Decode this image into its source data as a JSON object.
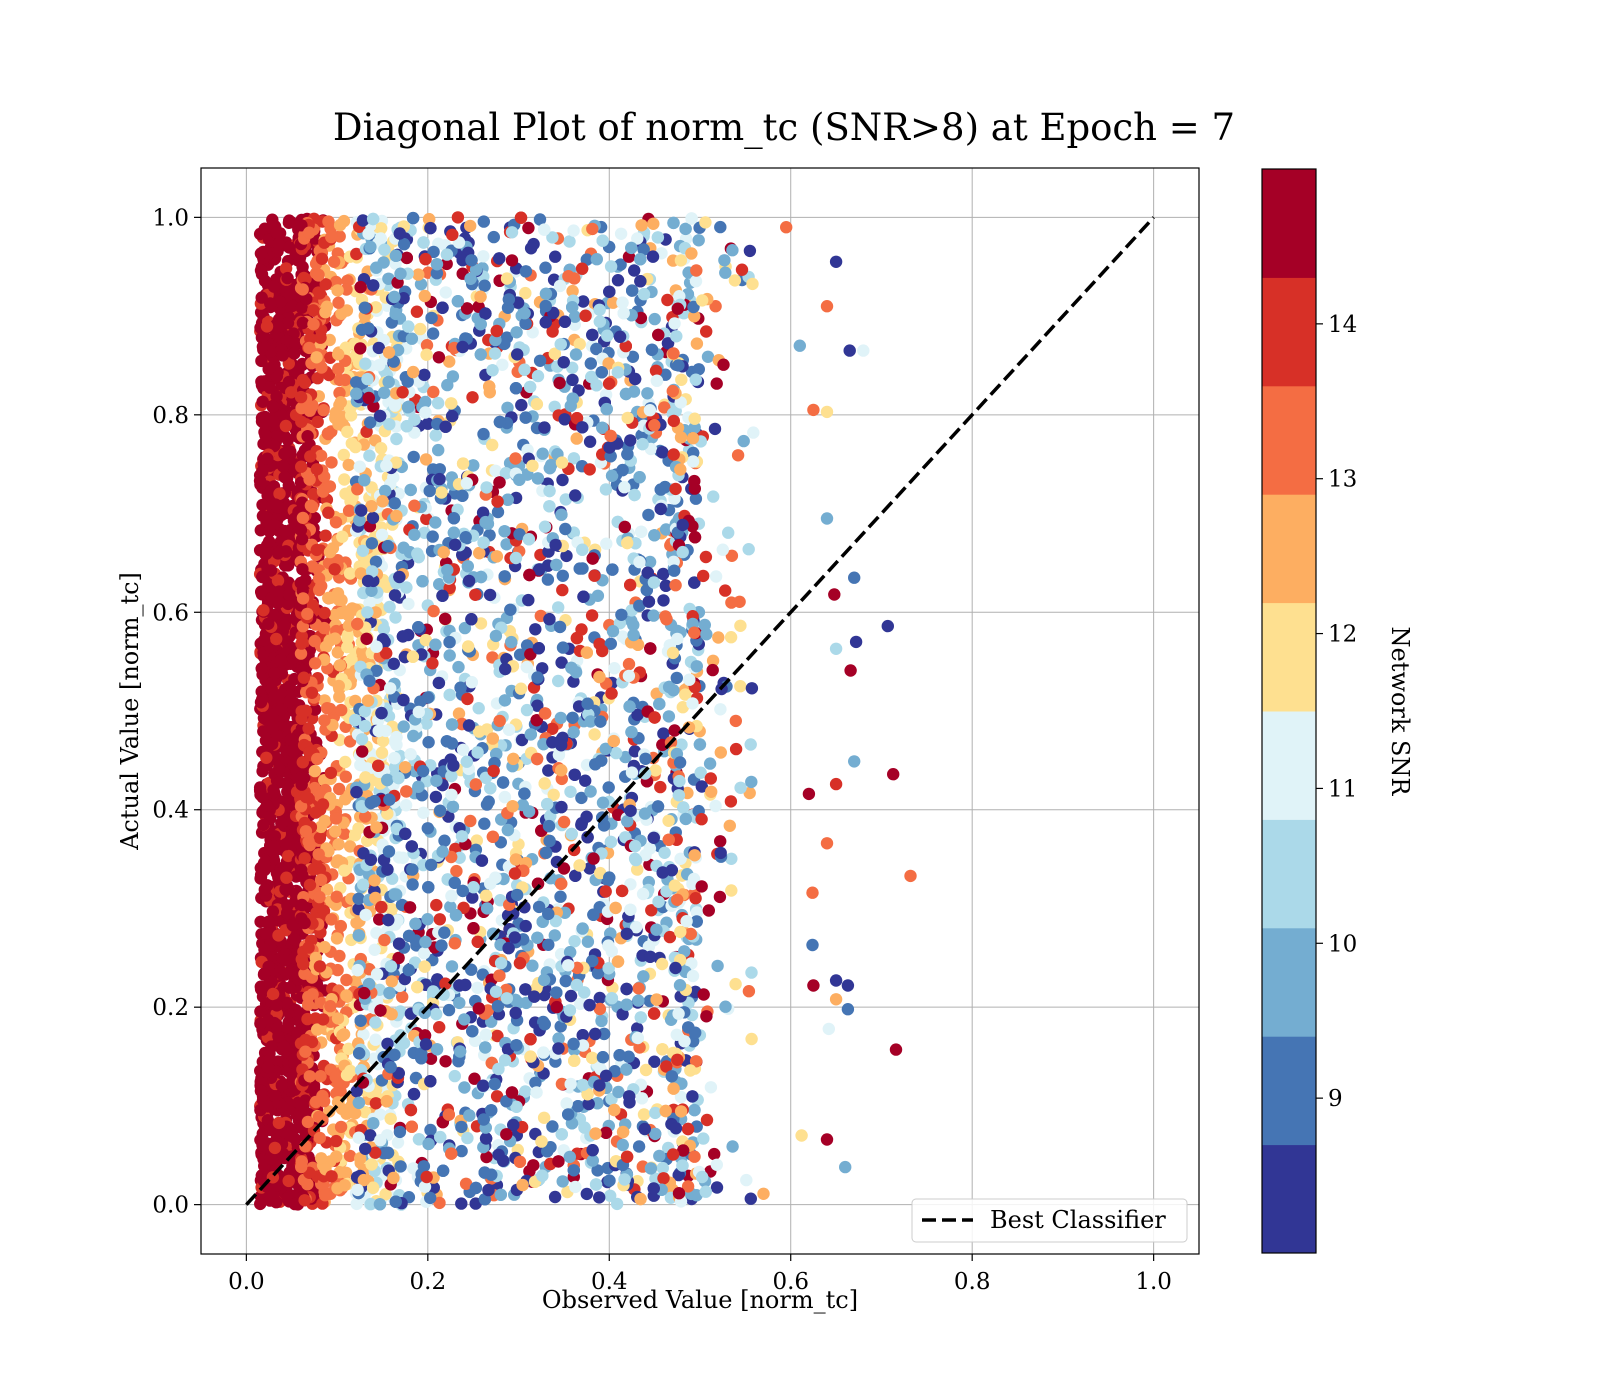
{
  "chart_data": {
    "type": "scatter",
    "title": "Diagonal Plot of norm_tc (SNR>8) at Epoch = 7",
    "xlabel": "Observed Value [norm_tc]",
    "ylabel": "Actual Value [norm_tc]",
    "xlim": [
      -0.05,
      1.05
    ],
    "ylim": [
      -0.05,
      1.05
    ],
    "xticks": [
      "0.0",
      "0.2",
      "0.4",
      "0.6",
      "0.8",
      "1.0"
    ],
    "yticks": [
      "0.0",
      "0.2",
      "0.4",
      "0.6",
      "0.8",
      "1.0"
    ],
    "grid": true,
    "legend": {
      "placement": "lower right",
      "entries": [
        "Best Classifier"
      ]
    },
    "reference_line": {
      "name": "Best Classifier",
      "x": [
        0.0,
        1.0
      ],
      "y": [
        0.0,
        1.0
      ],
      "style": "dashed",
      "color": "#000000"
    },
    "colorbar": {
      "label": "Network SNR",
      "range": [
        8,
        15
      ],
      "tick_labels": [
        "9",
        "10",
        "11",
        "12",
        "13",
        "14"
      ],
      "bin_colors": [
        "#313695",
        "#4575b4",
        "#74add1",
        "#abd9e9",
        "#e0f3f8",
        "#fee090",
        "#fdae61",
        "#f46d43",
        "#d73027",
        "#a50026"
      ]
    },
    "point_distribution": {
      "description_of_density": "dense column of high-SNR points near x=0.02-0.09 across all y; scattered mixed-SNR points for x up to ~0.55, sparse outliers up to ~0.73",
      "dense_x_range": [
        0.015,
        0.09
      ],
      "bulk_x_range": [
        0.0,
        0.55
      ],
      "y_range": [
        0.0,
        1.0
      ]
    },
    "outliers": [
      {
        "x": 0.65,
        "y": 0.955,
        "snr": 8.3
      },
      {
        "x": 0.61,
        "y": 0.87,
        "snr": 9.8
      },
      {
        "x": 0.665,
        "y": 0.865,
        "snr": 8.3
      },
      {
        "x": 0.68,
        "y": 0.865,
        "snr": 11.2
      },
      {
        "x": 0.64,
        "y": 0.91,
        "snr": 13.0
      },
      {
        "x": 0.595,
        "y": 0.99,
        "snr": 13.0
      },
      {
        "x": 0.625,
        "y": 0.805,
        "snr": 13.0
      },
      {
        "x": 0.64,
        "y": 0.803,
        "snr": 12.0
      },
      {
        "x": 0.64,
        "y": 0.695,
        "snr": 9.8
      },
      {
        "x": 0.67,
        "y": 0.635,
        "snr": 9.2
      },
      {
        "x": 0.648,
        "y": 0.618,
        "snr": 14.7
      },
      {
        "x": 0.707,
        "y": 0.586,
        "snr": 8.3
      },
      {
        "x": 0.672,
        "y": 0.57,
        "snr": 8.3
      },
      {
        "x": 0.65,
        "y": 0.563,
        "snr": 10.5
      },
      {
        "x": 0.666,
        "y": 0.541,
        "snr": 14.7
      },
      {
        "x": 0.62,
        "y": 0.416,
        "snr": 14.7
      },
      {
        "x": 0.67,
        "y": 0.449,
        "snr": 9.8
      },
      {
        "x": 0.713,
        "y": 0.436,
        "snr": 14.7
      },
      {
        "x": 0.65,
        "y": 0.426,
        "snr": 14.0
      },
      {
        "x": 0.732,
        "y": 0.333,
        "snr": 13.0
      },
      {
        "x": 0.64,
        "y": 0.366,
        "snr": 13.0
      },
      {
        "x": 0.624,
        "y": 0.316,
        "snr": 13.0
      },
      {
        "x": 0.624,
        "y": 0.263,
        "snr": 9.2
      },
      {
        "x": 0.65,
        "y": 0.227,
        "snr": 8.3
      },
      {
        "x": 0.663,
        "y": 0.222,
        "snr": 8.3
      },
      {
        "x": 0.625,
        "y": 0.222,
        "snr": 14.7
      },
      {
        "x": 0.65,
        "y": 0.208,
        "snr": 12.5
      },
      {
        "x": 0.663,
        "y": 0.198,
        "snr": 9.2
      },
      {
        "x": 0.642,
        "y": 0.178,
        "snr": 11.2
      },
      {
        "x": 0.716,
        "y": 0.157,
        "snr": 14.7
      },
      {
        "x": 0.64,
        "y": 0.066,
        "snr": 14.7
      },
      {
        "x": 0.66,
        "y": 0.038,
        "snr": 9.8
      },
      {
        "x": 0.612,
        "y": 0.07,
        "snr": 12.0
      },
      {
        "x": 0.57,
        "y": 0.011,
        "snr": 12.5
      },
      {
        "x": 0.556,
        "y": 0.006,
        "snr": 8.3
      }
    ]
  }
}
